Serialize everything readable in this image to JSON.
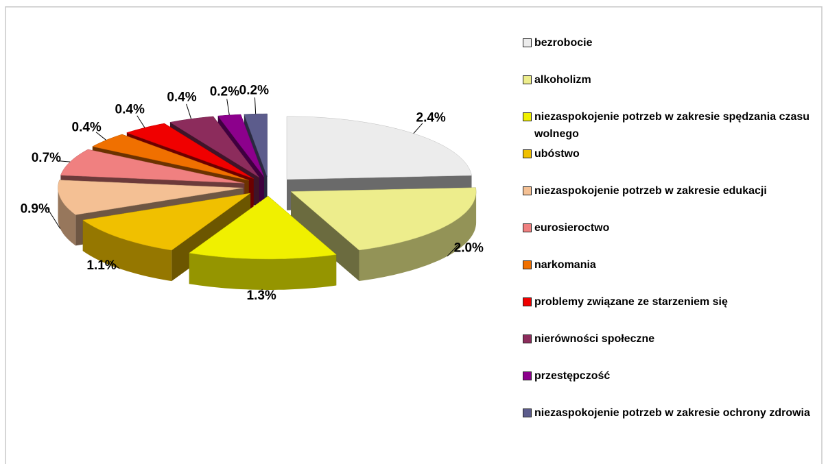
{
  "chart_data": {
    "type": "pie",
    "categories": [
      "bezrobocie",
      "alkoholizm",
      "niezaspokojenie potrzeb w zakresie spędzania czasu wolnego",
      "ubóstwo",
      "niezaspokojenie potrzeb w zakresie edukacji",
      "eurosieroctwo",
      "narkomania",
      "problemy związane ze starzeniem się",
      "nierówności społeczne",
      "przestępczość",
      "niezaspokojenie potrzeb w zakresie ochrony zdrowia"
    ],
    "values": [
      2.4,
      2.0,
      1.3,
      1.1,
      0.9,
      0.7,
      0.4,
      0.4,
      0.4,
      0.2,
      0.2
    ],
    "value_labels": [
      "2.4%",
      "2.0%",
      "1.3%",
      "1.1%",
      "0.9%",
      "0.7%",
      "0.4%",
      "0.4%",
      "0.4%",
      "0.2%",
      "0.2%"
    ],
    "colors": [
      "#ececec",
      "#eded8c",
      "#f0f000",
      "#f0c000",
      "#f4c094",
      "#f08080",
      "#f07000",
      "#f00000",
      "#8c2c5c",
      "#8c008c",
      "#5c5c8c"
    ],
    "legend": "right"
  }
}
